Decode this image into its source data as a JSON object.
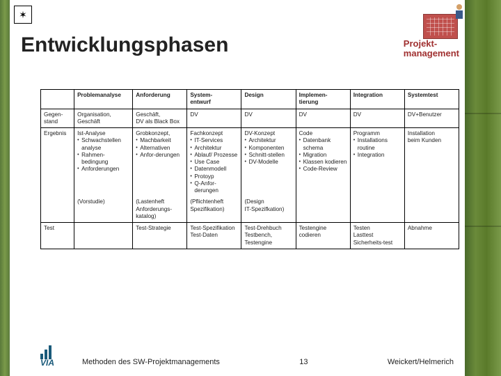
{
  "title": "Entwicklungsphasen",
  "headerLabel": "Projekt-\nmanagement",
  "table": {
    "borderColor": "#000000",
    "fontSize": 8.2,
    "columns": [
      "",
      "Problemanalyse",
      "Anforderung",
      "System-\nentwurf",
      "Design",
      "Implemen-\ntierung",
      "Integration",
      "Systemtest"
    ],
    "colWidths": [
      "8%",
      "14%",
      "13%",
      "13%",
      "13%",
      "13%",
      "13%",
      "13%"
    ],
    "rows": [
      {
        "label": "Gegen-\nstand",
        "cells": [
          {
            "text": "Organisation, Geschäft"
          },
          {
            "text": "Geschäft,\nDV als Black Box"
          },
          {
            "text": "DV"
          },
          {
            "text": "DV"
          },
          {
            "text": "DV"
          },
          {
            "text": "DV"
          },
          {
            "text": "DV+Benutzer"
          }
        ]
      },
      {
        "label": "Ergebnis",
        "cells": [
          {
            "lead": "Ist-Analyse",
            "bullets": [
              "Schwachstellen analyse",
              "Rahmen-bedingung",
              "Anforderungen"
            ]
          },
          {
            "lead": "Grobkonzept,",
            "bullets": [
              "Machbarkeit",
              "Alternativen",
              "Anfor-derungen"
            ]
          },
          {
            "lead": "Fachkonzept",
            "bullets": [
              "IT-Services",
              "Architektur",
              "Ablauf/ Prozesse",
              "Use Case",
              "Datenmodell",
              "Protoyp",
              "Q-Anfor-derungen"
            ]
          },
          {
            "lead": "DV-Konzept",
            "bullets": [
              "Architektur",
              "Komponenten",
              "Schnitt-stellen",
              "DV-Modelle"
            ]
          },
          {
            "lead": "Code",
            "bullets": [
              "Datenbank schema",
              "Migration",
              "Klassen kodieren",
              "Code-Review"
            ]
          },
          {
            "lead": "Programm",
            "bullets": [
              "Installations routine",
              "Integration"
            ]
          },
          {
            "lead": "Installation",
            "sublead": "beim Kunden"
          }
        ]
      },
      {
        "label": "",
        "cells": [
          {
            "text": "(Vorstudie)"
          },
          {
            "text": "(Lastenheft Anforderungs-katalog)"
          },
          {
            "text": "(Pflichtenheft Spezifikation)"
          },
          {
            "text": "(Design\nIT-Spezifkation)"
          },
          {
            "text": ""
          },
          {
            "text": ""
          },
          {
            "text": ""
          }
        ]
      },
      {
        "label": "Test",
        "cells": [
          {
            "text": ""
          },
          {
            "text": "Test-Strategie"
          },
          {
            "text": "Test-Spezifikation Test-Daten"
          },
          {
            "text": "Test-Drehbuch Testbench, Testengine"
          },
          {
            "text": "Testengine codieren"
          },
          {
            "text": "Testen\nLasttest\nSicherheits-test"
          },
          {
            "text": "Abnahme"
          }
        ]
      }
    ]
  },
  "footer": {
    "left": "Methoden des SW-Projektmanagements",
    "page": "13",
    "right": "Weickert/Helmerich",
    "logoText": "VIA",
    "logoColor": "#1a5a7a"
  },
  "colors": {
    "titleColor": "#222222",
    "pmLabelColor": "#a03030",
    "pmIconColor": "#c0504d",
    "bambooColors": [
      "#5a7a3a",
      "#7a9a4a",
      "#4a6a2a",
      "#6a8a3a"
    ],
    "background": "#ffffff"
  }
}
